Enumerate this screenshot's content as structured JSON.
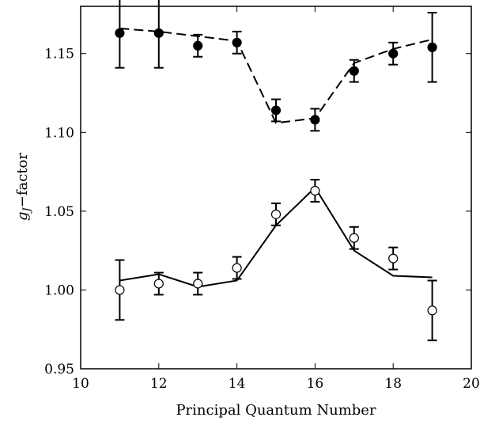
{
  "chart_data": {
    "type": "scatter",
    "xlabel": "Principal Quantum Number",
    "ylabel": {
      "symbol": "g",
      "subscript": "J",
      "suffix": "−factor"
    },
    "xlim": [
      10,
      20
    ],
    "ylim": [
      0.95,
      1.18
    ],
    "xticks": [
      10,
      12,
      14,
      16,
      18,
      20
    ],
    "xtick_labels": [
      "10",
      "12",
      "14",
      "16",
      "18",
      "20"
    ],
    "yticks": [
      0.95,
      1.0,
      1.05,
      1.1,
      1.15
    ],
    "ytick_labels": [
      "0.95",
      "1.00",
      "1.05",
      "1.10",
      "1.15"
    ],
    "grid": false,
    "series": [
      {
        "marker": "filled-circle",
        "x": [
          11,
          12,
          13,
          14,
          15,
          16,
          17,
          18,
          19
        ],
        "y": [
          1.163,
          1.163,
          1.155,
          1.157,
          1.114,
          1.108,
          1.139,
          1.15,
          1.154
        ],
        "yerr": [
          0.022,
          0.022,
          0.007,
          0.007,
          0.007,
          0.007,
          0.007,
          0.007,
          0.022
        ]
      },
      {
        "marker": "open-circle",
        "x": [
          11,
          12,
          13,
          14,
          15,
          16,
          17,
          18,
          19
        ],
        "y": [
          1.0,
          1.004,
          1.004,
          1.014,
          1.048,
          1.063,
          1.033,
          1.02,
          0.987
        ],
        "yerr": [
          0.019,
          0.007,
          0.007,
          0.007,
          0.007,
          0.007,
          0.007,
          0.007,
          0.019
        ]
      },
      {
        "line": "dashed",
        "x": [
          11,
          12,
          13,
          14,
          15,
          16,
          17,
          18,
          19
        ],
        "y": [
          1.166,
          1.164,
          1.161,
          1.158,
          1.106,
          1.109,
          1.144,
          1.153,
          1.159
        ]
      },
      {
        "line": "solid",
        "x": [
          11,
          12,
          13,
          14,
          15,
          16,
          17,
          18,
          19
        ],
        "y": [
          1.006,
          1.01,
          1.002,
          1.006,
          1.041,
          1.065,
          1.025,
          1.009,
          1.008
        ]
      }
    ]
  }
}
